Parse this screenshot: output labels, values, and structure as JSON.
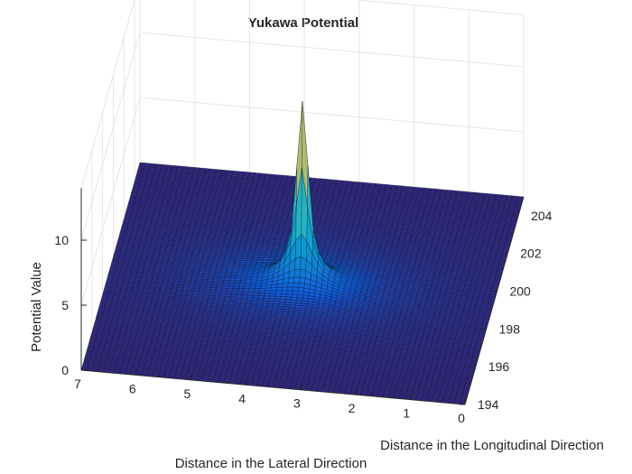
{
  "chart_data": {
    "type": "surface",
    "title": "Yukawa Potential",
    "xlabel": "Distance in the Lateral Direction",
    "ylabel": "Distance in the Longitudinal Direction",
    "zlabel": "Potential Value",
    "xlim": [
      0,
      7
    ],
    "ylim": [
      194,
      205
    ],
    "zlim": [
      0,
      14
    ],
    "xticks": [
      "0",
      "1",
      "2",
      "3",
      "4",
      "5",
      "6",
      "7"
    ],
    "yticks": [
      "194",
      "196",
      "198",
      "200",
      "202",
      "204"
    ],
    "zticks": [
      "0",
      "5",
      "10"
    ],
    "grid": true,
    "colormap": "parula",
    "surface_clip_max": 14,
    "peak_location": {
      "x": 3.5,
      "y": 199.5
    },
    "function": "z = exp(-r) / r, r = distance from peak_location, clipped at z max",
    "colors": {
      "low": "#352a87",
      "mid": "#21b1c8",
      "high": "#f9fb0e",
      "edge": "#000000",
      "axis": "#262626",
      "grid": "#e6e6e6"
    }
  }
}
